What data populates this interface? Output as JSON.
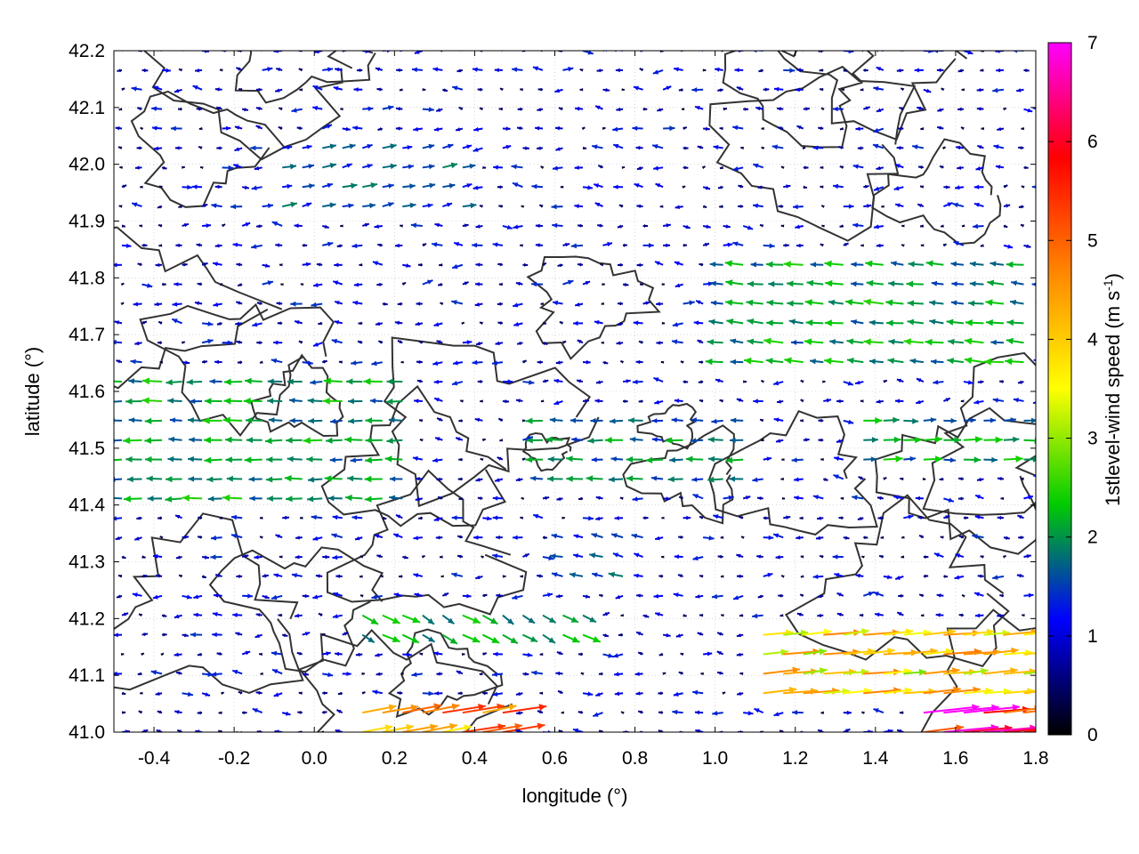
{
  "chart_data": {
    "type": "vector-field",
    "xlabel": "longitude (°)",
    "ylabel": "latitude (°)",
    "colorbar_label": "1stlevel-wind speed (m s",
    "colorbar_label_exponent": "-1",
    "colorbar_label_close": ")",
    "xlim": [
      -0.5,
      1.8
    ],
    "ylim": [
      41.0,
      42.2
    ],
    "xticks": [
      "-0.4",
      "-0.2",
      "0.0",
      "0.2",
      "0.4",
      "0.6",
      "0.8",
      "1.0",
      "1.2",
      "1.4",
      "1.6",
      "1.8"
    ],
    "yticks": [
      "41.0",
      "41.1",
      "41.2",
      "41.3",
      "41.4",
      "41.5",
      "41.6",
      "41.7",
      "41.8",
      "41.9",
      "42.0",
      "42.1",
      "42.2"
    ],
    "colorbar_range": [
      0,
      7
    ],
    "colorbar_ticks": [
      "0",
      "1",
      "2",
      "3",
      "4",
      "5",
      "6",
      "7"
    ],
    "colormap": [
      "#000000",
      "#0000ff",
      "#00cc00",
      "#ffff00",
      "#ff8800",
      "#ff0000",
      "#ff00ff"
    ],
    "grid": true,
    "contours": true,
    "regions": [
      {
        "lon": [
          -0.5,
          0.25
        ],
        "lat": [
          41.38,
          41.62
        ],
        "u": -2.0,
        "v": 0.0
      },
      {
        "lon": [
          1.0,
          1.8
        ],
        "lat": [
          41.62,
          41.85
        ],
        "u": -2.0,
        "v": 0.2
      },
      {
        "lon": [
          0.55,
          1.1
        ],
        "lat": [
          41.42,
          41.55
        ],
        "u": -1.8,
        "v": 0.0
      },
      {
        "lon": [
          1.1,
          1.8
        ],
        "lat": [
          41.05,
          41.2
        ],
        "u": 3.8,
        "v": 0.4
      },
      {
        "lon": [
          1.5,
          1.8
        ],
        "lat": [
          41.0,
          41.08
        ],
        "u": 5.8,
        "v": 0.6
      },
      {
        "lon": [
          0.1,
          0.5
        ],
        "lat": [
          41.0,
          41.06
        ],
        "u": 4.5,
        "v": 0.8
      },
      {
        "lon": [
          0.1,
          0.7
        ],
        "lat": [
          41.15,
          41.22
        ],
        "u": 1.8,
        "v": -1.0
      },
      {
        "lon": [
          1.35,
          1.8
        ],
        "lat": [
          41.45,
          41.55
        ],
        "u": 2.0,
        "v": 0.0
      },
      {
        "lon": [
          -0.1,
          0.4
        ],
        "lat": [
          41.9,
          42.05
        ],
        "u": 1.5,
        "v": 0.3
      },
      {
        "lon": [
          0.6,
          0.85
        ],
        "lat": [
          41.25,
          41.35
        ],
        "u": -1.5,
        "v": 0.3
      }
    ],
    "background_flow": {
      "u": -0.8,
      "v": 0.05,
      "speed_range": [
        0.2,
        1.5
      ]
    }
  }
}
